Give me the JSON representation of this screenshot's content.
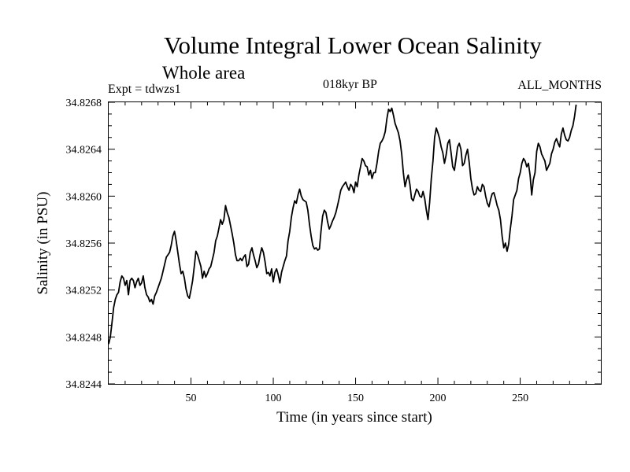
{
  "chart_data": {
    "type": "line",
    "title": "Volume Integral Lower Ocean Salinity",
    "subtitle": "Whole area",
    "experiment_label": "Expt = tdwzs1",
    "period_label": "018kyr BP",
    "season_label": "ALL_MONTHS",
    "xlabel": "Time (in years since start)",
    "ylabel": "Salinity (in PSU)",
    "xlim": [
      0,
      299
    ],
    "ylim": [
      34.8244,
      34.8268
    ],
    "x_ticks": [
      50,
      100,
      150,
      200,
      250
    ],
    "x_tick_labels": [
      "50",
      "100",
      "150",
      "200",
      "250"
    ],
    "y_ticks": [
      34.8244,
      34.8248,
      34.8252,
      34.8256,
      34.826,
      34.8264,
      34.8268
    ],
    "y_tick_labels": [
      "34.8244",
      "34.8248",
      "34.8252",
      "34.8256",
      "34.8260",
      "34.8264",
      "34.8268"
    ],
    "line_color": "#000000",
    "series": [
      {
        "name": "Salinity",
        "points": [
          [
            0,
            34.82474
          ],
          [
            1,
            34.8248
          ],
          [
            2,
            34.82492
          ],
          [
            3,
            34.82505
          ],
          [
            4,
            34.82512
          ],
          [
            5,
            34.82516
          ],
          [
            6,
            34.82518
          ],
          [
            7,
            34.82527
          ],
          [
            8,
            34.82532
          ],
          [
            9,
            34.8253
          ],
          [
            10,
            34.82524
          ],
          [
            11,
            34.82528
          ],
          [
            12,
            34.82516
          ],
          [
            13,
            34.82528
          ],
          [
            14,
            34.8253
          ],
          [
            15,
            34.82528
          ],
          [
            16,
            34.82522
          ],
          [
            17,
            34.82527
          ],
          [
            18,
            34.8253
          ],
          [
            19,
            34.82524
          ],
          [
            20,
            34.82526
          ],
          [
            21,
            34.82532
          ],
          [
            22,
            34.82522
          ],
          [
            23,
            34.82516
          ],
          [
            24,
            34.82514
          ],
          [
            25,
            34.8251
          ],
          [
            26,
            34.82512
          ],
          [
            27,
            34.82508
          ],
          [
            28,
            34.82515
          ],
          [
            29,
            34.82518
          ],
          [
            30,
            34.82522
          ],
          [
            31,
            34.82526
          ],
          [
            32,
            34.8253
          ],
          [
            33,
            34.82536
          ],
          [
            34,
            34.82542
          ],
          [
            35,
            34.82548
          ],
          [
            36,
            34.8255
          ],
          [
            37,
            34.82552
          ],
          [
            38,
            34.82558
          ],
          [
            39,
            34.82566
          ],
          [
            40,
            34.8257
          ],
          [
            41,
            34.82562
          ],
          [
            42,
            34.82552
          ],
          [
            43,
            34.82542
          ],
          [
            44,
            34.82534
          ],
          [
            45,
            34.82536
          ],
          [
            46,
            34.8253
          ],
          [
            47,
            34.82521
          ],
          [
            48,
            34.82515
          ],
          [
            49,
            34.82513
          ],
          [
            50,
            34.8252
          ],
          [
            51,
            34.82528
          ],
          [
            52,
            34.8254
          ],
          [
            53,
            34.82553
          ],
          [
            54,
            34.8255
          ],
          [
            55,
            34.82545
          ],
          [
            56,
            34.8254
          ],
          [
            57,
            34.8253
          ],
          [
            58,
            34.82536
          ],
          [
            59,
            34.82531
          ],
          [
            60,
            34.82534
          ],
          [
            61,
            34.82538
          ],
          [
            62,
            34.8254
          ],
          [
            63,
            34.82546
          ],
          [
            64,
            34.82552
          ],
          [
            65,
            34.82562
          ],
          [
            66,
            34.82566
          ],
          [
            67,
            34.82573
          ],
          [
            68,
            34.8258
          ],
          [
            69,
            34.82576
          ],
          [
            70,
            34.8258
          ],
          [
            71,
            34.82592
          ],
          [
            72,
            34.82586
          ],
          [
            73,
            34.82582
          ],
          [
            74,
            34.82575
          ],
          [
            75,
            34.82568
          ],
          [
            76,
            34.8256
          ],
          [
            77,
            34.8255
          ],
          [
            78,
            34.82545
          ],
          [
            79,
            34.82545
          ],
          [
            80,
            34.82547
          ],
          [
            81,
            34.82545
          ],
          [
            82,
            34.82548
          ],
          [
            83,
            34.8255
          ],
          [
            84,
            34.8254
          ],
          [
            85,
            34.82542
          ],
          [
            86,
            34.82552
          ],
          [
            87,
            34.82556
          ],
          [
            88,
            34.8255
          ],
          [
            89,
            34.82545
          ],
          [
            90,
            34.82539
          ],
          [
            91,
            34.82542
          ],
          [
            92,
            34.8255
          ],
          [
            93,
            34.82556
          ],
          [
            94,
            34.82552
          ],
          [
            95,
            34.82544
          ],
          [
            96,
            34.82534
          ],
          [
            97,
            34.82535
          ],
          [
            98,
            34.82532
          ],
          [
            99,
            34.82538
          ],
          [
            100,
            34.82527
          ],
          [
            101,
            34.82535
          ],
          [
            102,
            34.82538
          ],
          [
            103,
            34.82533
          ],
          [
            104,
            34.82526
          ],
          [
            105,
            34.82535
          ],
          [
            106,
            34.8254
          ],
          [
            107,
            34.82545
          ],
          [
            108,
            34.82549
          ],
          [
            109,
            34.82562
          ],
          [
            110,
            34.8257
          ],
          [
            111,
            34.82582
          ],
          [
            112,
            34.8259
          ],
          [
            113,
            34.82596
          ],
          [
            114,
            34.82594
          ],
          [
            115,
            34.82601
          ],
          [
            116,
            34.82606
          ],
          [
            117,
            34.826
          ],
          [
            118,
            34.82597
          ],
          [
            119,
            34.82596
          ],
          [
            120,
            34.82595
          ],
          [
            121,
            34.82588
          ],
          [
            122,
            34.82576
          ],
          [
            123,
            34.82566
          ],
          [
            124,
            34.82558
          ],
          [
            125,
            34.82555
          ],
          [
            126,
            34.82556
          ],
          [
            127,
            34.82554
          ],
          [
            128,
            34.82555
          ],
          [
            129,
            34.8257
          ],
          [
            130,
            34.82583
          ],
          [
            131,
            34.82588
          ],
          [
            132,
            34.82586
          ],
          [
            133,
            34.82578
          ],
          [
            134,
            34.82572
          ],
          [
            135,
            34.82575
          ],
          [
            136,
            34.82579
          ],
          [
            137,
            34.82582
          ],
          [
            138,
            34.82586
          ],
          [
            139,
            34.82592
          ],
          [
            140,
            34.82598
          ],
          [
            141,
            34.82605
          ],
          [
            142,
            34.82608
          ],
          [
            143,
            34.8261
          ],
          [
            144,
            34.82612
          ],
          [
            145,
            34.82608
          ],
          [
            146,
            34.82605
          ],
          [
            147,
            34.8261
          ],
          [
            148,
            34.82608
          ],
          [
            149,
            34.82603
          ],
          [
            150,
            34.82612
          ],
          [
            151,
            34.82608
          ],
          [
            152,
            34.82618
          ],
          [
            153,
            34.82625
          ],
          [
            154,
            34.82632
          ],
          [
            155,
            34.8263
          ],
          [
            156,
            34.82626
          ],
          [
            157,
            34.82625
          ],
          [
            158,
            34.82618
          ],
          [
            159,
            34.82622
          ],
          [
            160,
            34.82615
          ],
          [
            161,
            34.8262
          ],
          [
            162,
            34.8262
          ],
          [
            163,
            34.82628
          ],
          [
            164,
            34.82638
          ],
          [
            165,
            34.82645
          ],
          [
            166,
            34.82647
          ],
          [
            167,
            34.8265
          ],
          [
            168,
            34.82655
          ],
          [
            169,
            34.82666
          ],
          [
            170,
            34.82674
          ],
          [
            171,
            34.82672
          ],
          [
            172,
            34.82675
          ],
          [
            173,
            34.82669
          ],
          [
            174,
            34.82662
          ],
          [
            175,
            34.82658
          ],
          [
            176,
            34.82654
          ],
          [
            177,
            34.82647
          ],
          [
            178,
            34.82636
          ],
          [
            179,
            34.8262
          ],
          [
            180,
            34.82608
          ],
          [
            181,
            34.82614
          ],
          [
            182,
            34.82618
          ],
          [
            183,
            34.8261
          ],
          [
            184,
            34.82598
          ],
          [
            185,
            34.82596
          ],
          [
            186,
            34.82601
          ],
          [
            187,
            34.82606
          ],
          [
            188,
            34.82604
          ],
          [
            189,
            34.826
          ],
          [
            190,
            34.82599
          ],
          [
            191,
            34.82604
          ],
          [
            192,
            34.82598
          ],
          [
            193,
            34.82588
          ],
          [
            194,
            34.8258
          ],
          [
            195,
            34.82595
          ],
          [
            196,
            34.82615
          ],
          [
            197,
            34.8263
          ],
          [
            198,
            34.8265
          ],
          [
            199,
            34.82658
          ],
          [
            200,
            34.82654
          ],
          [
            201,
            34.82649
          ],
          [
            202,
            34.82642
          ],
          [
            203,
            34.82637
          ],
          [
            204,
            34.82628
          ],
          [
            205,
            34.82635
          ],
          [
            206,
            34.82645
          ],
          [
            207,
            34.82648
          ],
          [
            208,
            34.82637
          ],
          [
            209,
            34.82625
          ],
          [
            210,
            34.82622
          ],
          [
            211,
            34.82632
          ],
          [
            212,
            34.82642
          ],
          [
            213,
            34.82645
          ],
          [
            214,
            34.8264
          ],
          [
            215,
            34.82626
          ],
          [
            216,
            34.82628
          ],
          [
            217,
            34.82635
          ],
          [
            218,
            34.8264
          ],
          [
            219,
            34.82629
          ],
          [
            220,
            34.82615
          ],
          [
            221,
            34.82606
          ],
          [
            222,
            34.82601
          ],
          [
            223,
            34.82602
          ],
          [
            224,
            34.82608
          ],
          [
            225,
            34.82605
          ],
          [
            226,
            34.82604
          ],
          [
            227,
            34.8261
          ],
          [
            228,
            34.82608
          ],
          [
            229,
            34.826
          ],
          [
            230,
            34.82594
          ],
          [
            231,
            34.82591
          ],
          [
            232,
            34.82597
          ],
          [
            233,
            34.82602
          ],
          [
            234,
            34.82603
          ],
          [
            235,
            34.82598
          ],
          [
            236,
            34.82592
          ],
          [
            237,
            34.82588
          ],
          [
            238,
            34.8258
          ],
          [
            239,
            34.82566
          ],
          [
            240,
            34.82556
          ],
          [
            241,
            34.8256
          ],
          [
            242,
            34.82553
          ],
          [
            243,
            34.82559
          ],
          [
            244,
            34.82572
          ],
          [
            245,
            34.82583
          ],
          [
            246,
            34.82597
          ],
          [
            247,
            34.82601
          ],
          [
            248,
            34.82605
          ],
          [
            249,
            34.82615
          ],
          [
            250,
            34.8262
          ],
          [
            251,
            34.82628
          ],
          [
            252,
            34.82632
          ],
          [
            253,
            34.8263
          ],
          [
            254,
            34.82625
          ],
          [
            255,
            34.82628
          ],
          [
            256,
            34.82618
          ],
          [
            257,
            34.82601
          ],
          [
            258,
            34.82614
          ],
          [
            259,
            34.8262
          ],
          [
            260,
            34.82638
          ],
          [
            261,
            34.82645
          ],
          [
            262,
            34.82642
          ],
          [
            263,
            34.82636
          ],
          [
            264,
            34.82633
          ],
          [
            265,
            34.8263
          ],
          [
            266,
            34.82622
          ],
          [
            267,
            34.82625
          ],
          [
            268,
            34.82628
          ],
          [
            269,
            34.82636
          ],
          [
            270,
            34.8264
          ],
          [
            271,
            34.82646
          ],
          [
            272,
            34.82649
          ],
          [
            273,
            34.82645
          ],
          [
            274,
            34.82642
          ],
          [
            275,
            34.82653
          ],
          [
            276,
            34.82658
          ],
          [
            277,
            34.82652
          ],
          [
            278,
            34.82648
          ],
          [
            279,
            34.82647
          ],
          [
            280,
            34.8265
          ],
          [
            281,
            34.82656
          ],
          [
            282,
            34.8266
          ],
          [
            283,
            34.82668
          ],
          [
            284,
            34.82678
          ]
        ]
      }
    ]
  }
}
